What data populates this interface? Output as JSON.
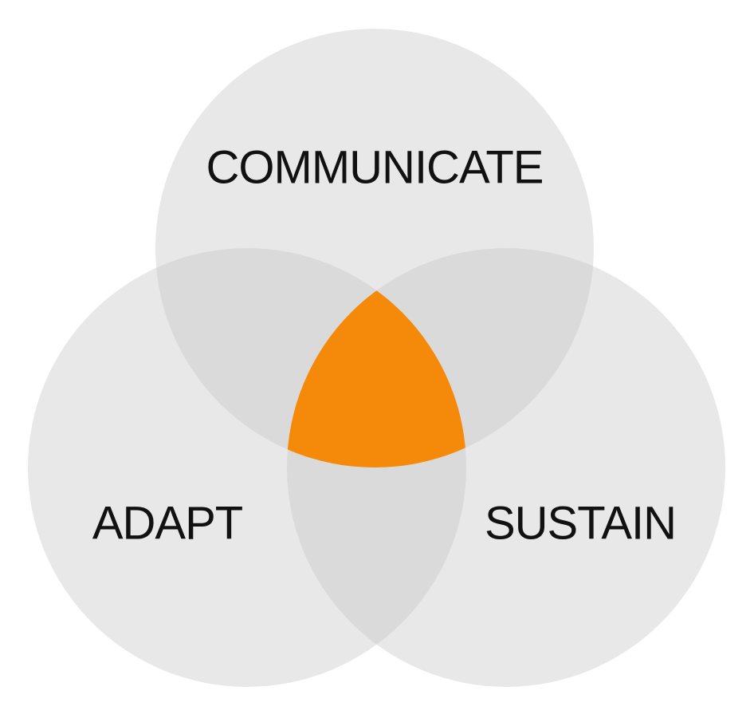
{
  "diagram": {
    "type": "venn",
    "circles": [
      {
        "id": "communicate",
        "label": "COMMUNICATE"
      },
      {
        "id": "adapt",
        "label": "ADAPT"
      },
      {
        "id": "sustain",
        "label": "SUSTAIN"
      }
    ]
  },
  "colors": {
    "circle_fill": "#e8e8e8",
    "pair_overlap_fill": "#dadada",
    "center_overlap_fill": "#f5890a",
    "label_text": "#111111"
  }
}
